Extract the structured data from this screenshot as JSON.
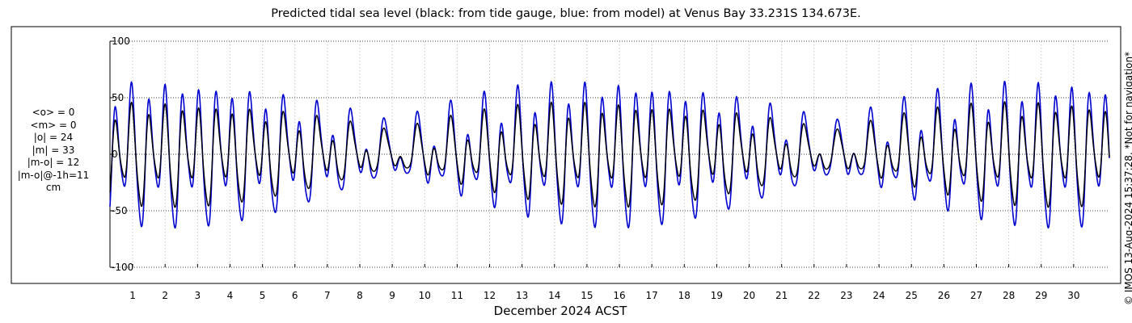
{
  "chart_data": {
    "type": "line",
    "title": "Predicted tidal sea level (black: from tide gauge, blue: from model) at Venus Bay 33.231S 134.673E.",
    "xlabel": "December 2024 ACST",
    "ylabel": "",
    "xlim": [
      0.3,
      31.1
    ],
    "ylim": [
      -100,
      100
    ],
    "y_ticks": [
      -100,
      -50,
      0,
      50,
      100
    ],
    "x_ticks": [
      1,
      2,
      3,
      4,
      5,
      6,
      7,
      8,
      9,
      10,
      11,
      12,
      13,
      14,
      15,
      16,
      17,
      18,
      19,
      20,
      21,
      22,
      23,
      24,
      25,
      26,
      27,
      28,
      29,
      30
    ],
    "grid": true,
    "series": [
      {
        "name": "from tide gauge",
        "color": "#000000",
        "amplitude_scale": 0.72
      },
      {
        "name": "from model",
        "color": "#0000d0",
        "amplitude_scale": 1.0
      }
    ],
    "note": "series values are plotted as semidiurnal/diurnal tidal curves with spring peaks near days 2, 15 and 29 and neaps near days 8-9 and 23-24"
  },
  "stats": [
    "<o> = 0",
    "<m> = 0",
    "|o| = 24",
    "|m| = 33",
    "|m-o| = 12",
    "|m-o|@-1h=11",
    "cm"
  ],
  "side_note": "© IMOS 13-Aug-2024 15:37:28. *Not for navigation*"
}
